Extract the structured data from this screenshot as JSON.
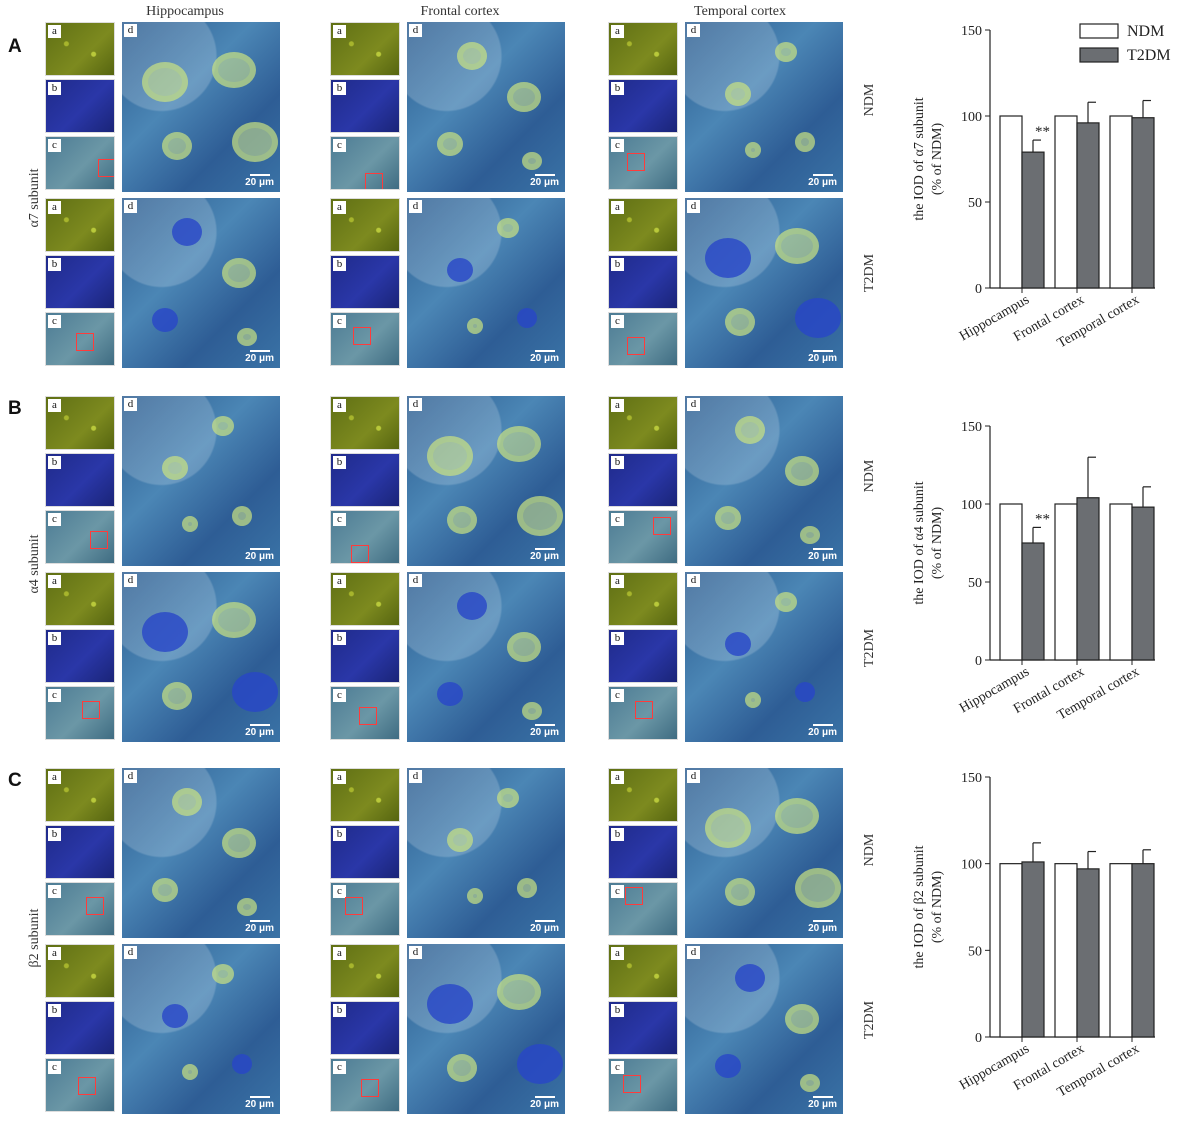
{
  "panels": [
    {
      "letter": "A",
      "subunit": "α7 subunit",
      "regions": [
        "Hippocampus",
        "Frontal cortex",
        "Temporal cortex"
      ],
      "conditions": [
        "NDM",
        "T2DM"
      ],
      "thumb_labels": [
        "a",
        "b",
        "c"
      ],
      "detail_label": "d",
      "scale_bar": "20 μm"
    },
    {
      "letter": "B",
      "subunit": "α4 subunit",
      "conditions": [
        "NDM",
        "T2DM"
      ],
      "thumb_labels": [
        "a",
        "b",
        "c"
      ],
      "detail_label": "d",
      "scale_bar": "20 μm"
    },
    {
      "letter": "C",
      "subunit": "β2 subunit",
      "conditions": [
        "NDM",
        "T2DM"
      ],
      "thumb_labels": [
        "a",
        "b",
        "c"
      ],
      "detail_label": "d",
      "scale_bar": "20 μm"
    }
  ],
  "colors": {
    "ndm_fill": "#ffffff",
    "t2dm_fill": "#6b6e72",
    "axis": "#222222",
    "highlight_box": "#ff3b3b"
  },
  "chart_data": [
    {
      "type": "bar",
      "categories": [
        "Hippocampus",
        "Frontal cortex",
        "Temporal cortex"
      ],
      "series": [
        {
          "name": "NDM",
          "values": [
            100,
            100,
            100
          ],
          "errors": [
            0,
            0,
            0
          ]
        },
        {
          "name": "T2DM",
          "values": [
            79,
            96,
            99
          ],
          "errors": [
            7,
            12,
            10
          ]
        }
      ],
      "annotations": [
        {
          "category": "Hippocampus",
          "series": "T2DM",
          "text": "**"
        }
      ],
      "ylabel_line1": "the IOD of α7 subunit",
      "ylabel_line2": "(% of NDM)",
      "ylim": [
        0,
        150
      ],
      "yticks": [
        0,
        50,
        100,
        150
      ],
      "legend": "top-right"
    },
    {
      "type": "bar",
      "categories": [
        "Hippocampus",
        "Frontal cortex",
        "Temporal cortex"
      ],
      "series": [
        {
          "name": "NDM",
          "values": [
            100,
            100,
            100
          ],
          "errors": [
            0,
            0,
            0
          ]
        },
        {
          "name": "T2DM",
          "values": [
            75,
            104,
            98
          ],
          "errors": [
            10,
            26,
            13
          ]
        }
      ],
      "annotations": [
        {
          "category": "Hippocampus",
          "series": "T2DM",
          "text": "**"
        }
      ],
      "ylabel_line1": "the IOD of α4 subunit",
      "ylabel_line2": "(% of NDM)",
      "ylim": [
        0,
        150
      ],
      "yticks": [
        0,
        50,
        100,
        150
      ]
    },
    {
      "type": "bar",
      "categories": [
        "Hippocampus",
        "Frontal cortex",
        "Temporal cortex"
      ],
      "series": [
        {
          "name": "NDM",
          "values": [
            100,
            100,
            100
          ],
          "errors": [
            0,
            0,
            0
          ]
        },
        {
          "name": "T2DM",
          "values": [
            101,
            97,
            100
          ],
          "errors": [
            11,
            10,
            8
          ]
        }
      ],
      "annotations": [],
      "ylabel_line1": "the IOD of β2 subunit",
      "ylabel_line2": "(% of NDM)",
      "ylim": [
        0,
        150
      ],
      "yticks": [
        0,
        50,
        100,
        150
      ]
    }
  ]
}
